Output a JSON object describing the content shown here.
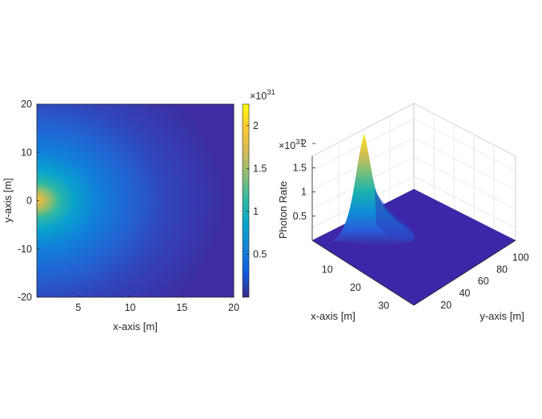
{
  "chart_data": [
    {
      "type": "heatmap",
      "title": "",
      "xlabel": "x-axis [m]",
      "ylabel": "y-axis [m]",
      "xlim": [
        1,
        20
      ],
      "ylim": [
        -20,
        20
      ],
      "xticks": [
        "5",
        "10",
        "15",
        "20"
      ],
      "xtick_values": [
        5,
        10,
        15,
        20
      ],
      "yticks": [
        "-20",
        "-10",
        "0",
        "10",
        "20"
      ],
      "ytick_values": [
        -20,
        -10,
        0,
        10,
        20
      ],
      "colormap": "parula",
      "colorbar": {
        "range": [
          0,
          2.25
        ],
        "ticks": [
          "0.5",
          "1",
          "1.5",
          "2"
        ],
        "tick_values": [
          0.5,
          1,
          1.5,
          2
        ],
        "exponent_label": "×10",
        "exponent_power": "31"
      },
      "peak": {
        "x": 1,
        "y": 0,
        "value": 2.2
      }
    },
    {
      "type": "surface",
      "title": "",
      "xlabel": "x-axis [m]",
      "ylabel": "y-axis [m]",
      "zlabel": "Photon Rate",
      "xticks": [
        "10",
        "20",
        "30"
      ],
      "xtick_values": [
        10,
        20,
        30
      ],
      "yticks": [
        "20",
        "40",
        "60",
        "80",
        "100"
      ],
      "ytick_values": [
        20,
        40,
        60,
        80,
        100
      ],
      "zticks": [
        "0.5",
        "1",
        "1.5",
        "2"
      ],
      "ztick_values": [
        0.5,
        1,
        1.5,
        2
      ],
      "z_exponent_label": "×10",
      "z_exponent_power": "31",
      "grid": true,
      "peak": {
        "value": 2.2
      }
    }
  ],
  "colors": {
    "background": "#ffffff",
    "axis": "#262626",
    "grid": "#dcdcdc",
    "floor": "#3e26a8",
    "parula": [
      "#352a87",
      "#0f5cdd",
      "#1481d6",
      "#06a4ca",
      "#2eb7a4",
      "#87bf77",
      "#d1bb59",
      "#fec832",
      "#f9fb0e"
    ]
  }
}
